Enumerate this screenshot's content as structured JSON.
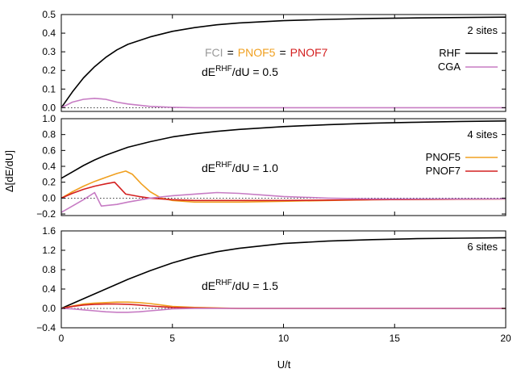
{
  "chart_data": {
    "type": "line",
    "ylabel": "Δ[dE/dU]",
    "xlabel": "U/t",
    "xlim": [
      0,
      20
    ],
    "xticks": [
      0,
      5,
      10,
      15,
      20
    ],
    "grid": false,
    "colors": {
      "RHF": "#000000",
      "CGA": "#c77cc4",
      "PNOF5": "#f0a020",
      "PNOF7": "#d42020",
      "FCI": "#9a9a9a"
    },
    "panels": [
      {
        "label": "2 sites",
        "annotation": {
          "prefix": "dE",
          "sup": "RHF",
          "suffix": "/dU = 0.5"
        },
        "equality": {
          "fci": "FCI",
          "pnof5": "PNOF5",
          "pnof7": "PNOF7",
          "eq": "="
        },
        "legend": [
          "RHF",
          "CGA"
        ],
        "ylim": [
          -0.02,
          0.5
        ],
        "yticks": [
          0.0,
          0.1,
          0.2,
          0.3,
          0.4,
          0.5
        ],
        "ytick_labels": [
          "0.0",
          "0.1",
          "0.2",
          "0.3",
          "0.4",
          "0.5"
        ],
        "series": [
          {
            "name": "RHF",
            "x": [
              0,
              0.5,
              1,
              1.5,
              2,
              2.5,
              3,
              4,
              5,
              6,
              7,
              8,
              10,
              12,
              14,
              16,
              18,
              20
            ],
            "y": [
              0,
              0.085,
              0.16,
              0.22,
              0.27,
              0.31,
              0.34,
              0.38,
              0.41,
              0.43,
              0.445,
              0.455,
              0.467,
              0.474,
              0.479,
              0.482,
              0.484,
              0.486
            ]
          },
          {
            "name": "CGA",
            "x": [
              0,
              0.5,
              1,
              1.5,
              2,
              2.5,
              3,
              4,
              5,
              6,
              20
            ],
            "y": [
              0,
              0.03,
              0.045,
              0.05,
              0.045,
              0.03,
              0.02,
              0.007,
              0.002,
              0.0,
              0.0
            ]
          }
        ]
      },
      {
        "label": "4 sites",
        "annotation": {
          "prefix": "dE",
          "sup": "RHF",
          "suffix": "/dU = 1.0"
        },
        "legend": [
          "PNOF5",
          "PNOF7"
        ],
        "ylim": [
          -0.22,
          1.0
        ],
        "yticks": [
          -0.2,
          0.0,
          0.2,
          0.4,
          0.6,
          0.8,
          1.0
        ],
        "ytick_labels": [
          "−0.2",
          "0.0",
          "0.2",
          "0.4",
          "0.6",
          "0.8",
          "1.0"
        ],
        "series": [
          {
            "name": "RHF",
            "x": [
              0,
              0.5,
              1,
              1.5,
              2,
              2.5,
              3,
              4,
              5,
              6,
              7,
              8,
              10,
              12,
              14,
              16,
              18,
              20
            ],
            "y": [
              0.25,
              0.33,
              0.41,
              0.48,
              0.54,
              0.59,
              0.64,
              0.71,
              0.77,
              0.81,
              0.84,
              0.865,
              0.9,
              0.925,
              0.943,
              0.955,
              0.965,
              0.972
            ]
          },
          {
            "name": "PNOF5",
            "x": [
              0,
              0.5,
              1,
              1.5,
              2,
              2.5,
              2.9,
              3.2,
              3.6,
              4,
              4.5,
              5,
              6,
              8,
              10,
              14,
              20
            ],
            "y": [
              0,
              0.08,
              0.15,
              0.21,
              0.26,
              0.31,
              0.34,
              0.3,
              0.18,
              0.08,
              0.0,
              -0.03,
              -0.05,
              -0.05,
              -0.04,
              -0.02,
              -0.01
            ]
          },
          {
            "name": "PNOF7",
            "x": [
              0,
              0.5,
              1,
              1.5,
              2,
              2.4,
              2.9,
              3.5,
              4,
              5,
              6,
              8,
              10,
              14,
              20
            ],
            "y": [
              0,
              0.06,
              0.11,
              0.15,
              0.18,
              0.2,
              0.05,
              0.02,
              0.0,
              -0.02,
              -0.03,
              -0.03,
              -0.03,
              -0.02,
              -0.01
            ]
          },
          {
            "name": "CGA",
            "x": [
              0,
              0.5,
              1,
              1.5,
              1.8,
              2.5,
              3,
              4,
              5,
              6,
              7,
              8,
              9,
              10,
              12,
              14,
              20
            ],
            "y": [
              -0.18,
              -0.1,
              -0.02,
              0.07,
              -0.1,
              -0.08,
              -0.05,
              0.0,
              0.03,
              0.05,
              0.07,
              0.06,
              0.04,
              0.02,
              0.0,
              -0.01,
              -0.01
            ]
          }
        ]
      },
      {
        "label": "6 sites",
        "annotation": {
          "prefix": "dE",
          "sup": "RHF",
          "suffix": "/dU = 1.5"
        },
        "legend": [],
        "ylim": [
          -0.4,
          1.6
        ],
        "yticks": [
          -0.4,
          0.0,
          0.4,
          0.8,
          1.2,
          1.6
        ],
        "ytick_labels": [
          "−0.4",
          "0.0",
          "0.4",
          "0.8",
          "1.2",
          "1.6"
        ],
        "series": [
          {
            "name": "RHF",
            "x": [
              0,
              0.5,
              1,
              1.5,
              2,
              2.5,
              3,
              4,
              5,
              6,
              7,
              8,
              10,
              12,
              14,
              16,
              18,
              20
            ],
            "y": [
              0,
              0.1,
              0.2,
              0.3,
              0.4,
              0.5,
              0.6,
              0.78,
              0.94,
              1.07,
              1.17,
              1.24,
              1.34,
              1.39,
              1.42,
              1.44,
              1.45,
              1.46
            ]
          },
          {
            "name": "PNOF5",
            "x": [
              0,
              0.5,
              1,
              1.5,
              2,
              2.5,
              3,
              3.5,
              4,
              4.5,
              5,
              6,
              8,
              20
            ],
            "y": [
              0,
              0.05,
              0.09,
              0.11,
              0.12,
              0.13,
              0.13,
              0.12,
              0.1,
              0.07,
              0.04,
              0.02,
              0.0,
              0.0
            ]
          },
          {
            "name": "PNOF7",
            "x": [
              0,
              0.5,
              1,
              1.5,
              2,
              2.5,
              3,
              3.5,
              4,
              5,
              6,
              8,
              20
            ],
            "y": [
              0,
              0.04,
              0.07,
              0.085,
              0.09,
              0.09,
              0.085,
              0.07,
              0.05,
              0.02,
              0.01,
              0.0,
              0.0
            ]
          },
          {
            "name": "CGA",
            "x": [
              0,
              0.5,
              1,
              1.5,
              2,
              2.5,
              3,
              3.5,
              4,
              4.5,
              5,
              6,
              8,
              20
            ],
            "y": [
              0,
              -0.01,
              -0.03,
              -0.05,
              -0.07,
              -0.08,
              -0.08,
              -0.07,
              -0.05,
              -0.03,
              -0.01,
              0.0,
              0.0,
              0.0
            ]
          }
        ]
      }
    ]
  }
}
